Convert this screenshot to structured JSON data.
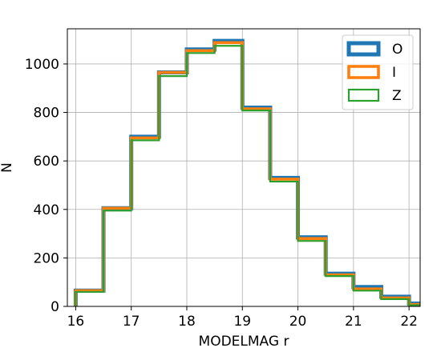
{
  "chart_data": {
    "type": "histogram-step",
    "xlabel": "MODELMAG r",
    "ylabel": "N",
    "xlim": [
      15.85,
      22.2
    ],
    "ylim": [
      0,
      1145
    ],
    "grid": true,
    "legend_position": "top-right",
    "bin_edges": [
      16,
      16.5,
      17,
      17.5,
      18,
      18.5,
      19,
      19.5,
      20,
      20.5,
      21,
      21.5,
      22,
      22.5
    ],
    "x_ticks": [
      16,
      17,
      18,
      19,
      20,
      21,
      22
    ],
    "y_ticks": [
      0,
      200,
      400,
      600,
      800,
      1000
    ],
    "series": [
      {
        "name": "O",
        "color": "#1f77b4",
        "line_width": "thick",
        "values": [
          65,
          405,
          700,
          965,
          1060,
          1095,
          820,
          530,
          285,
          135,
          80,
          40,
          12
        ]
      },
      {
        "name": "I",
        "color": "#ff7f0e",
        "line_width": "medium",
        "values": [
          65,
          405,
          695,
          965,
          1055,
          1088,
          815,
          525,
          280,
          130,
          72,
          35,
          8
        ]
      },
      {
        "name": "Z",
        "color": "#2ca02c",
        "line_width": "thin",
        "values": [
          60,
          395,
          685,
          950,
          1045,
          1075,
          808,
          515,
          270,
          125,
          65,
          30,
          5
        ]
      }
    ]
  }
}
